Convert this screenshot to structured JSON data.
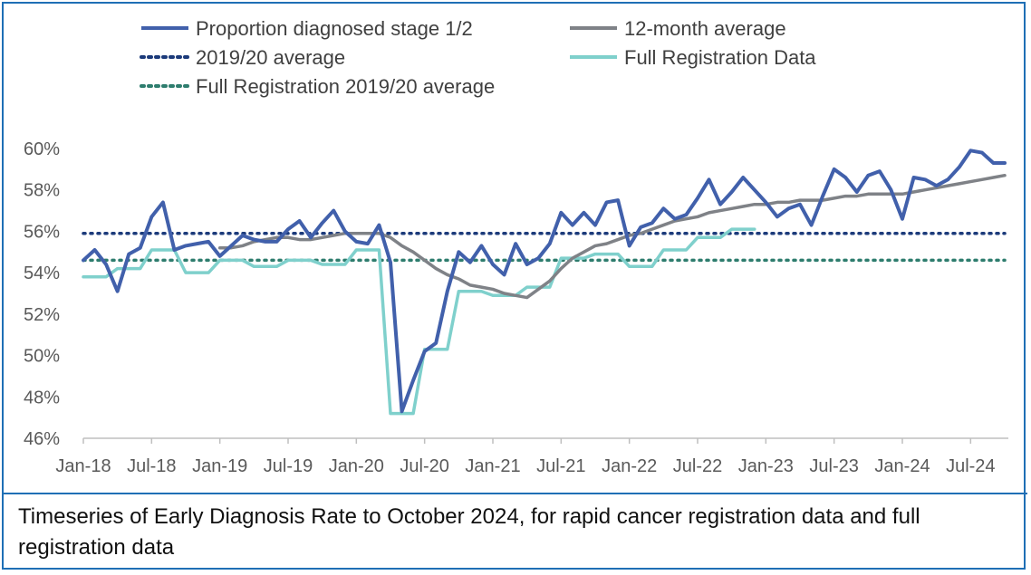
{
  "caption": "Timeseries of Early Diagnosis Rate to October 2024, for rapid cancer registration data and full registration data",
  "chart_data": {
    "type": "line",
    "ylim": [
      46,
      60
    ],
    "y_ticks": [
      "46%",
      "48%",
      "50%",
      "52%",
      "54%",
      "56%",
      "58%",
      "60%"
    ],
    "y_tick_values": [
      46,
      48,
      50,
      52,
      54,
      56,
      58,
      60
    ],
    "x_start": "Jan-18",
    "x_ticks": [
      "Jan-18",
      "Jul-18",
      "Jan-19",
      "Jul-19",
      "Jan-20",
      "Jul-20",
      "Jan-21",
      "Jul-21",
      "Jan-22",
      "Jul-22",
      "Jan-23",
      "Jul-23",
      "Jan-24",
      "Jul-24"
    ],
    "x_tick_indices": [
      0,
      6,
      12,
      18,
      24,
      30,
      36,
      42,
      48,
      54,
      60,
      66,
      72,
      78
    ],
    "n_months": 82,
    "legend_placement": "top",
    "series": [
      {
        "name": "Proportion diagnosed stage 1/2",
        "style": "solid",
        "color": "#4160ab",
        "values": [
          54.6,
          55.1,
          54.4,
          53.1,
          54.9,
          55.2,
          56.7,
          57.4,
          55.1,
          55.3,
          55.4,
          55.5,
          54.8,
          55.3,
          55.8,
          55.6,
          55.5,
          55.5,
          56.1,
          56.5,
          55.7,
          56.4,
          57.0,
          56.0,
          55.5,
          55.4,
          56.3,
          54.5,
          47.3,
          48.8,
          50.2,
          50.6,
          53.1,
          55.0,
          54.5,
          55.3,
          54.4,
          53.9,
          55.4,
          54.4,
          54.7,
          55.4,
          56.9,
          56.3,
          56.9,
          56.3,
          57.4,
          57.5,
          55.3,
          56.2,
          56.4,
          57.1,
          56.6,
          56.8,
          57.6,
          58.5,
          57.3,
          57.9,
          58.6,
          58.0,
          57.4,
          56.7,
          57.1,
          57.3,
          56.3,
          57.7,
          59.0,
          58.6,
          57.9,
          58.7,
          58.9,
          58.0,
          56.6,
          58.6,
          58.5,
          58.2,
          58.5,
          59.1,
          59.9,
          59.8,
          59.3,
          59.3
        ]
      },
      {
        "name": "12-month average",
        "style": "solid",
        "color": "#7f8287",
        "values": [
          null,
          null,
          null,
          null,
          null,
          null,
          null,
          null,
          null,
          null,
          null,
          null,
          55.2,
          55.2,
          55.3,
          55.5,
          55.6,
          55.7,
          55.7,
          55.6,
          55.6,
          55.7,
          55.8,
          55.9,
          55.9,
          55.9,
          55.9,
          55.7,
          55.3,
          55.0,
          54.6,
          54.2,
          53.9,
          53.7,
          53.4,
          53.3,
          53.2,
          53.0,
          52.9,
          52.8,
          53.2,
          53.6,
          54.2,
          54.7,
          55.0,
          55.3,
          55.4,
          55.6,
          55.8,
          55.9,
          56.1,
          56.3,
          56.5,
          56.6,
          56.7,
          56.9,
          57.0,
          57.1,
          57.2,
          57.3,
          57.3,
          57.4,
          57.4,
          57.5,
          57.5,
          57.5,
          57.6,
          57.7,
          57.7,
          57.8,
          57.8,
          57.8,
          57.8,
          57.9,
          58.0,
          58.1,
          58.2,
          58.3,
          58.4,
          58.5,
          58.6,
          58.7
        ]
      },
      {
        "name": "2019/20 average",
        "style": "dotted",
        "color": "#1b3a7a",
        "constant": 55.9
      },
      {
        "name": "Full Registration Data",
        "style": "solid",
        "color": "#7fd0cc",
        "values": [
          53.8,
          53.8,
          53.8,
          54.2,
          54.2,
          54.2,
          55.1,
          55.1,
          55.1,
          54.0,
          54.0,
          54.0,
          54.6,
          54.6,
          54.6,
          54.3,
          54.3,
          54.3,
          54.6,
          54.6,
          54.6,
          54.4,
          54.4,
          54.4,
          55.1,
          55.1,
          55.1,
          47.2,
          47.2,
          47.2,
          50.3,
          50.3,
          50.3,
          53.1,
          53.1,
          53.1,
          52.9,
          52.9,
          52.9,
          53.3,
          53.3,
          53.3,
          54.7,
          54.7,
          54.7,
          54.9,
          54.9,
          54.9,
          54.3,
          54.3,
          54.3,
          55.1,
          55.1,
          55.1,
          55.7,
          55.7,
          55.7,
          56.1,
          56.1,
          56.1
        ]
      },
      {
        "name": "Full Registration 2019/20 average",
        "style": "dotted",
        "color": "#2e7d6e",
        "constant": 54.6
      }
    ]
  }
}
